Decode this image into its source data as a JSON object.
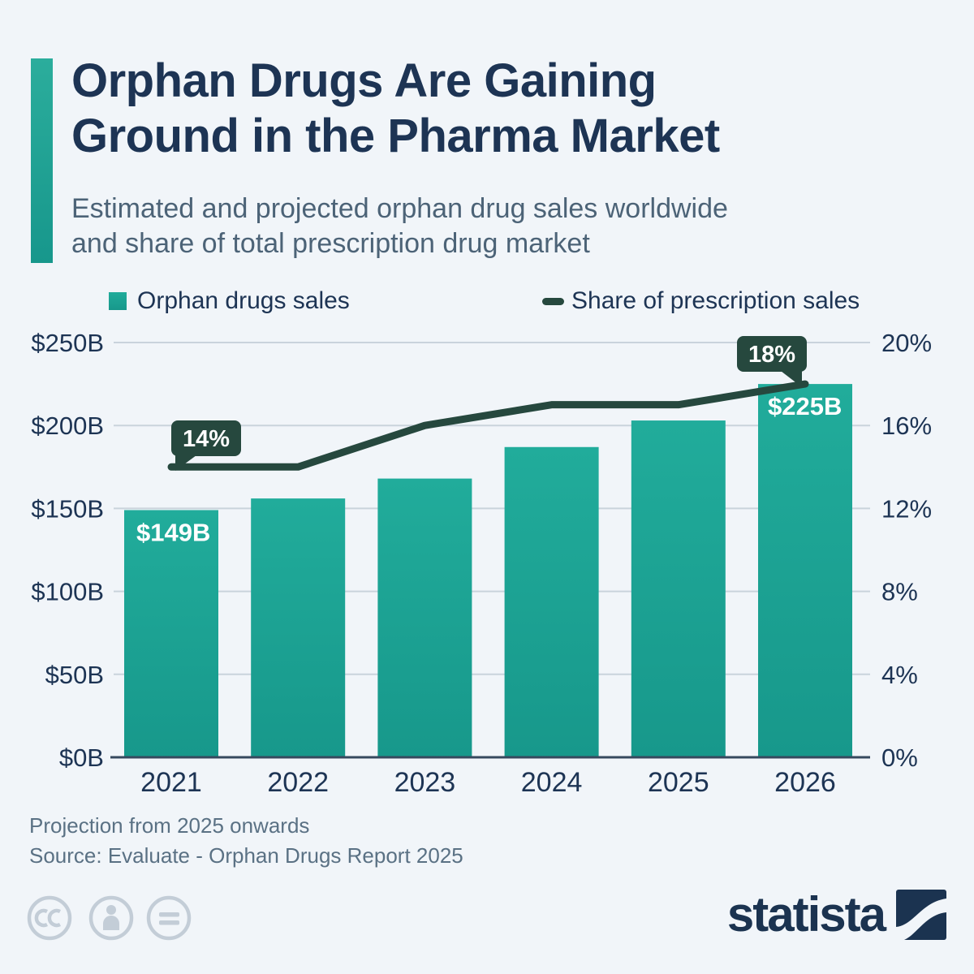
{
  "header": {
    "title_line1": "Orphan Drugs Are Gaining",
    "title_line2": "Ground in the Pharma Market",
    "subtitle_line1": "Estimated and projected orphan drug sales worldwide",
    "subtitle_line2": "and share of total prescription drug market"
  },
  "legend": {
    "bars_label": "Orphan drugs sales",
    "line_label": "Share of prescription sales"
  },
  "chart_data": {
    "type": "bar",
    "title": "Estimated and projected orphan drug sales worldwide and share of total prescription drug market",
    "categories": [
      "2021",
      "2022",
      "2023",
      "2024",
      "2025",
      "2026"
    ],
    "series": [
      {
        "name": "Orphan drugs sales",
        "type": "bar",
        "unit": "USD billions",
        "values": [
          149,
          156,
          168,
          187,
          203,
          225
        ]
      },
      {
        "name": "Share of prescription sales",
        "type": "line",
        "unit": "percent",
        "values": [
          14,
          14,
          16,
          17,
          17,
          18
        ]
      }
    ],
    "left_axis": {
      "ticks": [
        "$250B",
        "$200B",
        "$150B",
        "$100B",
        "$50B",
        "$0B"
      ],
      "values": [
        250,
        200,
        150,
        100,
        50,
        0
      ],
      "min": 0,
      "max": 250
    },
    "right_axis": {
      "ticks": [
        "20%",
        "16%",
        "12%",
        "8%",
        "4%",
        "0%"
      ],
      "values": [
        20,
        16,
        12,
        8,
        4,
        0
      ],
      "min": 0,
      "max": 20
    },
    "annotations": {
      "first_bar_label": "$149B",
      "last_bar_label": "$225B",
      "line_start_label": "14%",
      "line_end_label": "18%"
    },
    "layout": {
      "grid": true,
      "legend_position": "top"
    },
    "colors": {
      "bar_top": "#21AC9B",
      "bar_bottom": "#17988B",
      "line": "#26483E",
      "bubble": "#26483E",
      "grid": "#C9D3DC",
      "axis": "#36495E",
      "label": "#1D3454"
    }
  },
  "footer": {
    "note": "Projection from 2025 onwards",
    "source": "Source: Evaluate - Orphan Drugs Report 2025"
  },
  "branding": {
    "logo_text": "statista",
    "license_icons": [
      "cc-icon",
      "person-icon",
      "equals-icon"
    ]
  }
}
